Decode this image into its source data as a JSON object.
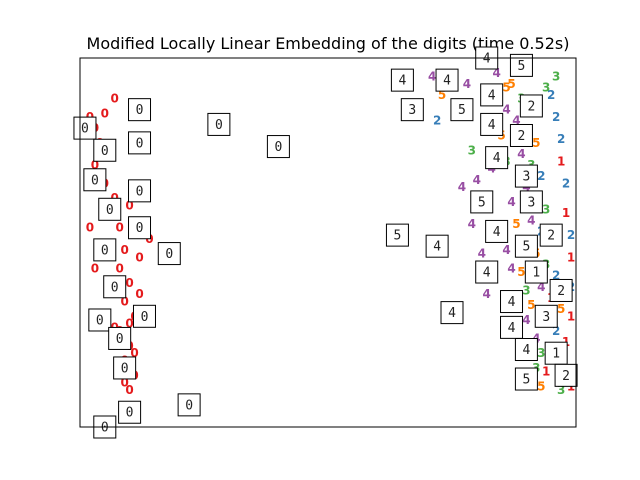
{
  "chart_data": {
    "type": "scatter",
    "title": "Modified Locally Linear Embedding of the digits (time 0.52s)",
    "xlabel": "",
    "ylabel": "",
    "xlim": [
      0,
      1
    ],
    "ylim": [
      0,
      1
    ],
    "axes_ticks": false,
    "grid": false,
    "legend": "none",
    "colors": {
      "0": "#e41a1c",
      "1": "#e41a1c",
      "2": "#377eb8",
      "3": "#4daf4a",
      "4": "#984ea3",
      "5": "#ff7f00"
    },
    "points": [
      {
        "x": 0.02,
        "y": 0.84,
        "label": "0"
      },
      {
        "x": 0.03,
        "y": 0.81,
        "label": "0"
      },
      {
        "x": 0.05,
        "y": 0.85,
        "label": "0"
      },
      {
        "x": 0.04,
        "y": 0.77,
        "label": "0"
      },
      {
        "x": 0.06,
        "y": 0.74,
        "label": "0"
      },
      {
        "x": 0.03,
        "y": 0.71,
        "label": "0"
      },
      {
        "x": 0.05,
        "y": 0.66,
        "label": "0"
      },
      {
        "x": 0.07,
        "y": 0.62,
        "label": "0"
      },
      {
        "x": 0.06,
        "y": 0.57,
        "label": "0"
      },
      {
        "x": 0.08,
        "y": 0.54,
        "label": "0"
      },
      {
        "x": 0.1,
        "y": 0.6,
        "label": "0"
      },
      {
        "x": 0.11,
        "y": 0.52,
        "label": "0"
      },
      {
        "x": 0.09,
        "y": 0.48,
        "label": "0"
      },
      {
        "x": 0.08,
        "y": 0.43,
        "label": "0"
      },
      {
        "x": 0.1,
        "y": 0.39,
        "label": "0"
      },
      {
        "x": 0.09,
        "y": 0.34,
        "label": "0"
      },
      {
        "x": 0.11,
        "y": 0.3,
        "label": "0"
      },
      {
        "x": 0.08,
        "y": 0.26,
        "label": "0"
      },
      {
        "x": 0.1,
        "y": 0.22,
        "label": "0"
      },
      {
        "x": 0.09,
        "y": 0.18,
        "label": "0"
      },
      {
        "x": 0.11,
        "y": 0.14,
        "label": "0"
      },
      {
        "x": 0.1,
        "y": 0.1,
        "label": "0"
      },
      {
        "x": 0.09,
        "y": 0.05,
        "label": "0"
      },
      {
        "x": 0.02,
        "y": 0.54,
        "label": "0"
      },
      {
        "x": 0.03,
        "y": 0.43,
        "label": "0"
      },
      {
        "x": 0.14,
        "y": 0.51,
        "label": "0"
      },
      {
        "x": 0.12,
        "y": 0.46,
        "label": "0"
      },
      {
        "x": 0.07,
        "y": 0.27,
        "label": "0"
      },
      {
        "x": 0.1,
        "y": 0.28,
        "label": "0"
      },
      {
        "x": 0.12,
        "y": 0.36,
        "label": "0"
      },
      {
        "x": 0.11,
        "y": 0.2,
        "label": "0"
      },
      {
        "x": 0.09,
        "y": 0.12,
        "label": "0"
      },
      {
        "x": 0.07,
        "y": 0.89,
        "label": "0"
      },
      {
        "x": 0.12,
        "y": 0.64,
        "label": "0"
      },
      {
        "x": 0.71,
        "y": 0.95,
        "label": "4"
      },
      {
        "x": 0.78,
        "y": 0.93,
        "label": "4"
      },
      {
        "x": 0.73,
        "y": 0.9,
        "label": "5"
      },
      {
        "x": 0.72,
        "y": 0.83,
        "label": "2"
      },
      {
        "x": 0.82,
        "y": 0.89,
        "label": "5"
      },
      {
        "x": 0.84,
        "y": 0.96,
        "label": "4"
      },
      {
        "x": 0.86,
        "y": 0.92,
        "label": "5"
      },
      {
        "x": 0.79,
        "y": 0.75,
        "label": "3"
      },
      {
        "x": 0.77,
        "y": 0.65,
        "label": "4"
      },
      {
        "x": 0.8,
        "y": 0.67,
        "label": "4"
      },
      {
        "x": 0.83,
        "y": 0.7,
        "label": "4"
      },
      {
        "x": 0.79,
        "y": 0.55,
        "label": "4"
      },
      {
        "x": 0.81,
        "y": 0.47,
        "label": "4"
      },
      {
        "x": 0.82,
        "y": 0.36,
        "label": "4"
      },
      {
        "x": 0.85,
        "y": 0.52,
        "label": "2"
      },
      {
        "x": 0.87,
        "y": 0.43,
        "label": "4"
      },
      {
        "x": 0.88,
        "y": 0.33,
        "label": "2"
      },
      {
        "x": 0.9,
        "y": 0.29,
        "label": "4"
      },
      {
        "x": 0.92,
        "y": 0.16,
        "label": "3"
      },
      {
        "x": 0.93,
        "y": 0.11,
        "label": "5"
      },
      {
        "x": 0.97,
        "y": 0.1,
        "label": "3"
      },
      {
        "x": 0.99,
        "y": 0.11,
        "label": "1"
      },
      {
        "x": 0.97,
        "y": 0.13,
        "label": "5"
      },
      {
        "x": 0.88,
        "y": 0.97,
        "label": "4"
      },
      {
        "x": 0.87,
        "y": 0.93,
        "label": "5"
      },
      {
        "x": 0.89,
        "y": 0.89,
        "label": "3"
      },
      {
        "x": 0.91,
        "y": 0.86,
        "label": "5"
      },
      {
        "x": 0.88,
        "y": 0.83,
        "label": "4"
      },
      {
        "x": 0.9,
        "y": 0.8,
        "label": "2"
      },
      {
        "x": 0.92,
        "y": 0.77,
        "label": "5"
      },
      {
        "x": 0.89,
        "y": 0.74,
        "label": "4"
      },
      {
        "x": 0.91,
        "y": 0.71,
        "label": "3"
      },
      {
        "x": 0.93,
        "y": 0.68,
        "label": "2"
      },
      {
        "x": 0.9,
        "y": 0.65,
        "label": "4"
      },
      {
        "x": 0.92,
        "y": 0.62,
        "label": "5"
      },
      {
        "x": 0.94,
        "y": 0.59,
        "label": "3"
      },
      {
        "x": 0.91,
        "y": 0.56,
        "label": "4"
      },
      {
        "x": 0.93,
        "y": 0.53,
        "label": "2"
      },
      {
        "x": 0.95,
        "y": 0.5,
        "label": "1"
      },
      {
        "x": 0.92,
        "y": 0.47,
        "label": "5"
      },
      {
        "x": 0.94,
        "y": 0.44,
        "label": "3"
      },
      {
        "x": 0.96,
        "y": 0.41,
        "label": "2"
      },
      {
        "x": 0.93,
        "y": 0.38,
        "label": "4"
      },
      {
        "x": 0.95,
        "y": 0.35,
        "label": "1"
      },
      {
        "x": 0.97,
        "y": 0.32,
        "label": "5"
      },
      {
        "x": 0.94,
        "y": 0.29,
        "label": "3"
      },
      {
        "x": 0.96,
        "y": 0.26,
        "label": "2"
      },
      {
        "x": 0.98,
        "y": 0.23,
        "label": "1"
      },
      {
        "x": 0.95,
        "y": 0.2,
        "label": "5"
      },
      {
        "x": 0.97,
        "y": 0.17,
        "label": "3"
      },
      {
        "x": 0.99,
        "y": 0.14,
        "label": "2"
      },
      {
        "x": 0.86,
        "y": 0.86,
        "label": "4"
      },
      {
        "x": 0.85,
        "y": 0.79,
        "label": "5"
      },
      {
        "x": 0.86,
        "y": 0.72,
        "label": "3"
      },
      {
        "x": 0.87,
        "y": 0.61,
        "label": "4"
      },
      {
        "x": 0.88,
        "y": 0.55,
        "label": "5"
      },
      {
        "x": 0.86,
        "y": 0.48,
        "label": "4"
      },
      {
        "x": 0.89,
        "y": 0.42,
        "label": "5"
      },
      {
        "x": 0.9,
        "y": 0.37,
        "label": "3"
      },
      {
        "x": 0.91,
        "y": 0.33,
        "label": "5"
      },
      {
        "x": 0.92,
        "y": 0.24,
        "label": "4"
      },
      {
        "x": 0.93,
        "y": 0.2,
        "label": "3"
      },
      {
        "x": 0.94,
        "y": 0.15,
        "label": "1"
      },
      {
        "x": 0.95,
        "y": 0.9,
        "label": "2"
      },
      {
        "x": 0.96,
        "y": 0.84,
        "label": "2"
      },
      {
        "x": 0.97,
        "y": 0.78,
        "label": "2"
      },
      {
        "x": 0.97,
        "y": 0.72,
        "label": "1"
      },
      {
        "x": 0.98,
        "y": 0.66,
        "label": "2"
      },
      {
        "x": 0.98,
        "y": 0.58,
        "label": "1"
      },
      {
        "x": 0.99,
        "y": 0.52,
        "label": "2"
      },
      {
        "x": 0.99,
        "y": 0.46,
        "label": "1"
      },
      {
        "x": 0.99,
        "y": 0.38,
        "label": "2"
      },
      {
        "x": 0.99,
        "y": 0.3,
        "label": "1"
      },
      {
        "x": 0.96,
        "y": 0.95,
        "label": "3"
      },
      {
        "x": 0.94,
        "y": 0.92,
        "label": "3"
      }
    ],
    "thumbnails": [
      {
        "x": 0.01,
        "y": 0.81,
        "digit": "0"
      },
      {
        "x": 0.05,
        "y": 0.75,
        "digit": "0"
      },
      {
        "x": 0.03,
        "y": 0.67,
        "digit": "0"
      },
      {
        "x": 0.06,
        "y": 0.59,
        "digit": "0"
      },
      {
        "x": 0.05,
        "y": 0.48,
        "digit": "0"
      },
      {
        "x": 0.07,
        "y": 0.38,
        "digit": "0"
      },
      {
        "x": 0.04,
        "y": 0.29,
        "digit": "0"
      },
      {
        "x": 0.08,
        "y": 0.24,
        "digit": "0"
      },
      {
        "x": 0.09,
        "y": 0.16,
        "digit": "0"
      },
      {
        "x": 0.1,
        "y": 0.04,
        "digit": "0"
      },
      {
        "x": 0.05,
        "y": 0.0,
        "digit": "0"
      },
      {
        "x": 0.12,
        "y": 0.86,
        "digit": "0"
      },
      {
        "x": 0.12,
        "y": 0.77,
        "digit": "0"
      },
      {
        "x": 0.12,
        "y": 0.64,
        "digit": "0"
      },
      {
        "x": 0.12,
        "y": 0.54,
        "digit": "0"
      },
      {
        "x": 0.18,
        "y": 0.47,
        "digit": "0"
      },
      {
        "x": 0.13,
        "y": 0.3,
        "digit": "0"
      },
      {
        "x": 0.22,
        "y": 0.06,
        "digit": "0"
      },
      {
        "x": 0.28,
        "y": 0.82,
        "digit": "0"
      },
      {
        "x": 0.4,
        "y": 0.76,
        "digit": "0"
      },
      {
        "x": 0.65,
        "y": 0.94,
        "digit": "4"
      },
      {
        "x": 0.74,
        "y": 0.94,
        "digit": "4"
      },
      {
        "x": 0.67,
        "y": 0.86,
        "digit": "3"
      },
      {
        "x": 0.77,
        "y": 0.86,
        "digit": "5"
      },
      {
        "x": 0.82,
        "y": 1.0,
        "digit": "4"
      },
      {
        "x": 0.89,
        "y": 0.98,
        "digit": "5"
      },
      {
        "x": 0.83,
        "y": 0.9,
        "digit": "4"
      },
      {
        "x": 0.91,
        "y": 0.87,
        "digit": "2"
      },
      {
        "x": 0.83,
        "y": 0.82,
        "digit": "4"
      },
      {
        "x": 0.89,
        "y": 0.79,
        "digit": "2"
      },
      {
        "x": 0.84,
        "y": 0.73,
        "digit": "4"
      },
      {
        "x": 0.9,
        "y": 0.68,
        "digit": "3"
      },
      {
        "x": 0.81,
        "y": 0.61,
        "digit": "5"
      },
      {
        "x": 0.91,
        "y": 0.61,
        "digit": "3"
      },
      {
        "x": 0.84,
        "y": 0.53,
        "digit": "4"
      },
      {
        "x": 0.95,
        "y": 0.52,
        "digit": "2"
      },
      {
        "x": 0.64,
        "y": 0.52,
        "digit": "5"
      },
      {
        "x": 0.72,
        "y": 0.49,
        "digit": "4"
      },
      {
        "x": 0.9,
        "y": 0.49,
        "digit": "5"
      },
      {
        "x": 0.82,
        "y": 0.42,
        "digit": "4"
      },
      {
        "x": 0.92,
        "y": 0.42,
        "digit": "1"
      },
      {
        "x": 0.87,
        "y": 0.34,
        "digit": "4"
      },
      {
        "x": 0.97,
        "y": 0.37,
        "digit": "2"
      },
      {
        "x": 0.75,
        "y": 0.31,
        "digit": "4"
      },
      {
        "x": 0.94,
        "y": 0.3,
        "digit": "3"
      },
      {
        "x": 0.87,
        "y": 0.27,
        "digit": "4"
      },
      {
        "x": 0.9,
        "y": 0.21,
        "digit": "4"
      },
      {
        "x": 0.96,
        "y": 0.2,
        "digit": "1"
      },
      {
        "x": 0.9,
        "y": 0.13,
        "digit": "5"
      },
      {
        "x": 0.98,
        "y": 0.14,
        "digit": "2"
      }
    ]
  }
}
